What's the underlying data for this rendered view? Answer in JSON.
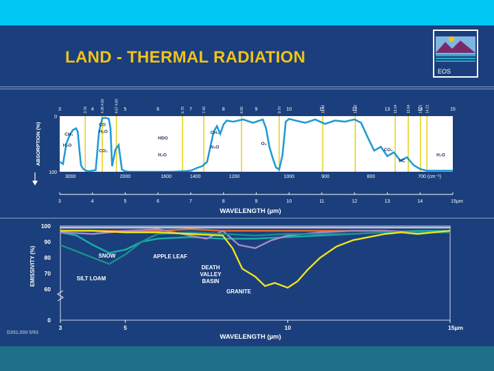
{
  "title": "LAND - THERMAL RADIATION",
  "footer": "D351.000 5/93",
  "logo_text": "EOS",
  "colors": {
    "background": "#1b3f7c",
    "top_bar": "#00c8f5",
    "title": "#f2c21b",
    "absorption_line": "#1e9ad6",
    "absorption_panel": "#ffffff",
    "marker": "#e7d21b"
  },
  "chart_data": [
    {
      "type": "line",
      "ylabel": "ABSORPTION (%)",
      "xlabel": "WAVELENGTH (µm)",
      "ylim": [
        0,
        100
      ],
      "xlim": [
        3,
        15
      ],
      "y_tick_labels": [
        "0",
        "100"
      ],
      "bottom_x_ticks": [
        "3",
        "4",
        "5",
        "6",
        "7",
        "8",
        "9",
        "10",
        "11",
        "12",
        "13",
        "14",
        "15µm"
      ],
      "top_wavenumber_ticks": [
        "3000",
        "2000",
        "1600",
        "1400",
        "1200",
        "1000",
        "900",
        "800",
        "700 (cm⁻¹)"
      ],
      "top_wavelength_ticks": [
        "3",
        "4",
        "5",
        "6",
        "7",
        "8",
        "9",
        "10",
        "11",
        "12",
        "13",
        "14",
        "15"
      ],
      "marker_labels": [
        {
          "x": 3.78,
          "text": "3.78"
        },
        {
          "x": 4.3,
          "text": "4.35 4.50"
        },
        {
          "x": 4.73,
          "text": "4.67 4.83"
        },
        {
          "x": 6.75,
          "text": "6.75"
        },
        {
          "x": 7.4,
          "text": "7.40"
        },
        {
          "x": 8.55,
          "text": "8.55"
        },
        {
          "x": 9.7,
          "text": "9.70"
        },
        {
          "x": 11.03,
          "text": "11.03"
        },
        {
          "x": 12.02,
          "text": "12.02"
        },
        {
          "x": 13.24,
          "text": "13.24"
        },
        {
          "x": 13.64,
          "text": "13.64"
        },
        {
          "x": 14.01,
          "text": "14.01"
        },
        {
          "x": 14.21,
          "text": "14.21"
        }
      ],
      "annotations": [
        {
          "x": 3.15,
          "y": 35,
          "text": "CH₄"
        },
        {
          "x": 3.1,
          "y": 55,
          "text": "H₂O"
        },
        {
          "x": 4.2,
          "y": 18,
          "text": "CO"
        },
        {
          "x": 4.2,
          "y": 30,
          "text": "H₂O"
        },
        {
          "x": 4.2,
          "y": 65,
          "text": "CO₂"
        },
        {
          "x": 6.0,
          "y": 42,
          "text": "HDO"
        },
        {
          "x": 6.0,
          "y": 72,
          "text": "H₂O"
        },
        {
          "x": 7.6,
          "y": 32,
          "text": "CH₄"
        },
        {
          "x": 7.6,
          "y": 58,
          "text": "N₂O"
        },
        {
          "x": 9.15,
          "y": 52,
          "text": "O₃"
        },
        {
          "x": 12.9,
          "y": 63,
          "text": "CO₂"
        },
        {
          "x": 13.35,
          "y": 83,
          "text": "HC"
        },
        {
          "x": 14.5,
          "y": 72,
          "text": "H₂O"
        }
      ],
      "series": [
        {
          "x": [
            3.0,
            3.1,
            3.2,
            3.3,
            3.4,
            3.5,
            3.55,
            3.6,
            3.65,
            3.72,
            3.8,
            3.9,
            4.0,
            4.1,
            4.2,
            4.3,
            4.4,
            4.5,
            4.55,
            4.6,
            4.7,
            4.8,
            4.9,
            5.0,
            5.1,
            5.3,
            5.6,
            6.0,
            6.4,
            6.8,
            7.0,
            7.2,
            7.35,
            7.5,
            7.6,
            7.7,
            7.8,
            7.9,
            8.0,
            8.1,
            8.3,
            8.6,
            8.9,
            9.2,
            9.3,
            9.4,
            9.5,
            9.6,
            9.7,
            9.8,
            9.9,
            10.0,
            10.2,
            10.5,
            10.8,
            11.1,
            11.4,
            11.7,
            12.0,
            12.2,
            12.4,
            12.6,
            12.8,
            13.0,
            13.2,
            13.4,
            13.6,
            13.8,
            14.0,
            14.2,
            14.6,
            15.0
          ],
          "y": [
            82,
            86,
            50,
            35,
            25,
            22,
            28,
            60,
            88,
            95,
            98,
            99,
            98,
            97,
            28,
            4,
            3,
            5,
            22,
            90,
            60,
            52,
            96,
            99,
            100,
            100,
            100,
            100,
            100,
            99,
            98,
            93,
            90,
            82,
            55,
            28,
            18,
            32,
            15,
            8,
            10,
            6,
            12,
            6,
            22,
            55,
            75,
            92,
            96,
            70,
            10,
            5,
            8,
            12,
            6,
            14,
            8,
            10,
            6,
            12,
            38,
            62,
            55,
            72,
            65,
            80,
            74,
            88,
            95,
            98,
            98,
            98
          ]
        }
      ]
    },
    {
      "type": "line",
      "ylabel": "EMISSIVITY (%)",
      "xlabel": "WAVELENGTH (µm)",
      "ylim": [
        0,
        100
      ],
      "xlim": [
        3,
        15
      ],
      "y_tick_labels": [
        "0",
        "60",
        "70",
        "80",
        "90",
        "100"
      ],
      "x_tick_labels": [
        "3",
        "5",
        "10",
        "15µm"
      ],
      "series": [
        {
          "name": "SNOW",
          "color": "#19b1a8",
          "x": [
            3,
            3.5,
            4,
            4.5,
            5,
            5.5,
            6,
            7,
            8,
            9,
            10,
            11,
            12,
            13,
            14,
            15
          ],
          "y": [
            96,
            94,
            88,
            83,
            85,
            90,
            92,
            93,
            92,
            92,
            93,
            94,
            95,
            96,
            97,
            97
          ]
        },
        {
          "name": "APPLE LEAF",
          "color": "#e66a2c",
          "x": [
            3,
            4,
            5,
            6,
            7,
            8,
            9,
            10,
            11,
            12,
            13,
            14,
            15
          ],
          "y": [
            97,
            97,
            97,
            97,
            98,
            97,
            97,
            97,
            97,
            97,
            97,
            96,
            96
          ]
        },
        {
          "name": "DEATH VALLEY BASIN",
          "color": "#a98ac4",
          "x": [
            3,
            4,
            5,
            6,
            7,
            7.5,
            8,
            8.5,
            9,
            9.5,
            10,
            11,
            12,
            13,
            14,
            15
          ],
          "y": [
            96,
            95,
            97,
            98,
            94,
            92,
            97,
            88,
            86,
            91,
            94,
            96,
            97,
            97,
            96,
            96
          ]
        },
        {
          "name": "SILT LOAM",
          "color": "#1a8f8f",
          "x": [
            3,
            3.5,
            4,
            4.5,
            5,
            5.5,
            6,
            7,
            8,
            9,
            10,
            11,
            12,
            13,
            14,
            15
          ],
          "y": [
            88,
            84,
            80,
            76,
            82,
            90,
            95,
            96,
            95,
            94,
            95,
            95,
            95,
            96,
            96,
            96
          ]
        },
        {
          "name": "GRANITE",
          "color": "#f2e41b",
          "x": [
            3,
            4,
            5,
            6,
            7,
            8,
            8.3,
            8.6,
            9,
            9.3,
            9.6,
            10,
            10.3,
            10.6,
            11,
            11.5,
            12,
            12.5,
            13,
            13.5,
            14,
            14.5,
            15
          ],
          "y": [
            97,
            97,
            96,
            96,
            95,
            94,
            86,
            73,
            68,
            62,
            64,
            61,
            65,
            72,
            80,
            87,
            91,
            93,
            95,
            96,
            95,
            96,
            97
          ]
        },
        {
          "name": "",
          "color": "#c8c8d8",
          "x": [
            3,
            4,
            5,
            6,
            7,
            8,
            9,
            10,
            11,
            12,
            13,
            14,
            15
          ],
          "y": [
            99,
            99,
            99,
            99,
            99,
            99,
            99,
            99,
            99,
            99,
            99,
            99,
            99
          ]
        }
      ]
    }
  ]
}
